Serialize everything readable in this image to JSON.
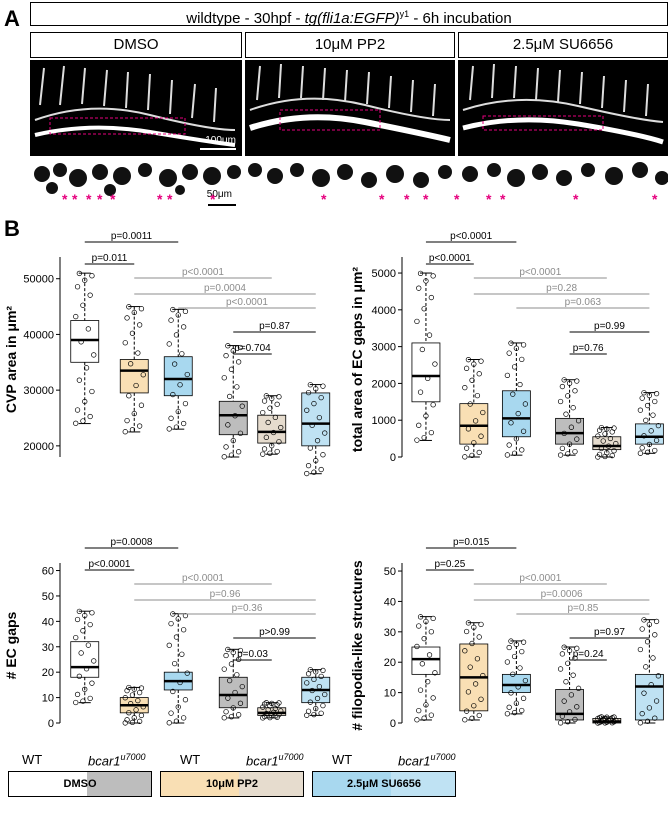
{
  "panel_a": {
    "letter": "A",
    "title_parts": [
      "wildtype - 30hpf - ",
      "tg(fli1a:EGFP)",
      "y1",
      " - 6h incubation"
    ],
    "conditions": [
      "DMSO",
      "10μM PP2",
      "2.5μM SU6656"
    ],
    "scale_top": "100μm",
    "scale_bottom": "50μm",
    "asterisk": "*",
    "asterisk_color": "#e6007e"
  },
  "panel_b": {
    "letter": "B"
  },
  "colors": {
    "dmso_wt": "#ffffff",
    "dmso_mut": "#bdbdbd",
    "pp2": "#f9dfb4",
    "pp2_mut": "#e6dcce",
    "su": "#a8d8ef",
    "su_mut": "#bfe2f3",
    "sig_black": "#000000",
    "sig_gray": "#8c8c8c"
  },
  "chart_data": [
    {
      "type": "box",
      "ylabel": "CVP area in μm²",
      "ylim": [
        18000,
        53000
      ],
      "yticks": [
        20000,
        30000,
        40000,
        50000
      ],
      "groups": [
        {
          "name": "WT DMSO",
          "q1": 35000,
          "median": 39000,
          "q3": 42500,
          "wlo": 24000,
          "whi": 51000
        },
        {
          "name": "bcar1 DMSO",
          "q1": 22000,
          "median": 25500,
          "q3": 28000,
          "wlo": 18000,
          "whi": 38000
        },
        {
          "name": "WT PP2",
          "q1": 29500,
          "median": 33500,
          "q3": 35500,
          "wlo": 22500,
          "whi": 45000
        },
        {
          "name": "bcar1 PP2",
          "q1": 20500,
          "median": 22500,
          "q3": 25500,
          "wlo": 18500,
          "whi": 29000
        },
        {
          "name": "WT SU6656",
          "q1": 29000,
          "median": 32000,
          "q3": 36000,
          "wlo": 23000,
          "whi": 44500
        },
        {
          "name": "bcar1 SU6656",
          "q1": 20000,
          "median": 24000,
          "q3": 29500,
          "wlo": 15000,
          "whi": 31000
        }
      ],
      "comparisons": [
        {
          "a": 0,
          "b": 4,
          "label": "p=0.0011",
          "color": "black"
        },
        {
          "a": 0,
          "b": 2,
          "label": "p=0.011",
          "color": "black"
        },
        {
          "a": 2,
          "b": 3,
          "label": "p<0.0001",
          "color": "gray"
        },
        {
          "a": 3,
          "b": 6,
          "label": "p=0.0004",
          "color": "gray"
        },
        {
          "a": 5,
          "b": 6,
          "label": "p<0.0001",
          "color": "gray"
        },
        {
          "a": 4,
          "b": 6,
          "label": "p=0.87",
          "color": "black"
        },
        {
          "a": 4,
          "b": 5,
          "label": "p=0.704",
          "color": "black"
        }
      ]
    },
    {
      "type": "box",
      "ylabel": "total area of EC gaps in μm²",
      "ylim": [
        0,
        5300
      ],
      "yticks": [
        0,
        1000,
        2000,
        3000,
        4000,
        5000
      ],
      "groups": [
        {
          "name": "WT DMSO",
          "q1": 1500,
          "median": 2200,
          "q3": 3100,
          "wlo": 450,
          "whi": 5000
        },
        {
          "name": "bcar1 DMSO",
          "q1": 350,
          "median": 650,
          "q3": 1050,
          "wlo": 50,
          "whi": 2100
        },
        {
          "name": "WT PP2",
          "q1": 350,
          "median": 850,
          "q3": 1450,
          "wlo": 0,
          "whi": 2650
        },
        {
          "name": "bcar1 PP2",
          "q1": 200,
          "median": 300,
          "q3": 550,
          "wlo": 0,
          "whi": 800
        },
        {
          "name": "WT SU6656",
          "q1": 550,
          "median": 1050,
          "q3": 1800,
          "wlo": 50,
          "whi": 3100
        },
        {
          "name": "bcar1 SU6656",
          "q1": 350,
          "median": 550,
          "q3": 900,
          "wlo": 100,
          "whi": 1750
        }
      ],
      "comparisons": [
        {
          "a": 0,
          "b": 4,
          "label": "p<0.0001",
          "color": "black"
        },
        {
          "a": 0,
          "b": 2,
          "label": "p<0.0001",
          "color": "black"
        },
        {
          "a": 2,
          "b": 3,
          "label": "p<0.0001",
          "color": "gray"
        },
        {
          "a": 3,
          "b": 6,
          "label": "p=0.28",
          "color": "gray"
        },
        {
          "a": 5,
          "b": 6,
          "label": "p=0.063",
          "color": "gray"
        },
        {
          "a": 4,
          "b": 6,
          "label": "p=0.99",
          "color": "black"
        },
        {
          "a": 4,
          "b": 5,
          "label": "p=0.76",
          "color": "black"
        }
      ]
    },
    {
      "type": "box",
      "ylabel": "# EC gaps",
      "ylim": [
        0,
        61
      ],
      "yticks": [
        0,
        10,
        20,
        30,
        40,
        50,
        60
      ],
      "groups": [
        {
          "name": "WT DMSO",
          "q1": 18,
          "median": 22,
          "q3": 32,
          "wlo": 8,
          "whi": 44
        },
        {
          "name": "bcar1 DMSO",
          "q1": 6,
          "median": 11,
          "q3": 18,
          "wlo": 2,
          "whi": 29
        },
        {
          "name": "WT PP2",
          "q1": 4,
          "median": 7,
          "q3": 10,
          "wlo": 0,
          "whi": 14
        },
        {
          "name": "bcar1 PP2",
          "q1": 3,
          "median": 4,
          "q3": 6,
          "wlo": 2,
          "whi": 8
        },
        {
          "name": "WT SU6656",
          "q1": 13,
          "median": 16.5,
          "q3": 20,
          "wlo": 0,
          "whi": 43
        },
        {
          "name": "bcar1 SU6656",
          "q1": 8,
          "median": 13,
          "q3": 18,
          "wlo": 3,
          "whi": 21
        }
      ],
      "comparisons": [
        {
          "a": 0,
          "b": 4,
          "label": "p=0.0008",
          "color": "black"
        },
        {
          "a": 0,
          "b": 2,
          "label": "p<0.0001",
          "color": "black"
        },
        {
          "a": 2,
          "b": 3,
          "label": "p<0.0001",
          "color": "gray"
        },
        {
          "a": 3,
          "b": 6,
          "label": "p=0.96",
          "color": "gray"
        },
        {
          "a": 5,
          "b": 6,
          "label": "p=0.36",
          "color": "gray"
        },
        {
          "a": 4,
          "b": 6,
          "label": "p>0.99",
          "color": "black"
        },
        {
          "a": 4,
          "b": 5,
          "label": "p=0.03",
          "color": "black"
        }
      ]
    },
    {
      "type": "box",
      "ylabel": "# filopodia-like structures",
      "ylim": [
        0,
        51
      ],
      "yticks": [
        0,
        10,
        20,
        30,
        40,
        50
      ],
      "groups": [
        {
          "name": "WT DMSO",
          "q1": 16,
          "median": 21,
          "q3": 25,
          "wlo": 1,
          "whi": 35
        },
        {
          "name": "bcar1 DMSO",
          "q1": 1,
          "median": 3,
          "q3": 11,
          "wlo": 0,
          "whi": 25
        },
        {
          "name": "WT PP2",
          "q1": 4,
          "median": 15,
          "q3": 26,
          "wlo": 1,
          "whi": 33
        },
        {
          "name": "bcar1 PP2",
          "q1": 0,
          "median": 0.5,
          "q3": 1.5,
          "wlo": 0,
          "whi": 2
        },
        {
          "name": "WT SU6656",
          "q1": 10,
          "median": 12.5,
          "q3": 16,
          "wlo": 3,
          "whi": 27
        },
        {
          "name": "bcar1 SU6656",
          "q1": 1,
          "median": 12,
          "q3": 16,
          "wlo": 0,
          "whi": 34
        }
      ],
      "comparisons": [
        {
          "a": 0,
          "b": 4,
          "label": "p=0.015",
          "color": "black"
        },
        {
          "a": 0,
          "b": 2,
          "label": "p=0.25",
          "color": "black"
        },
        {
          "a": 2,
          "b": 3,
          "label": "p<0.0001",
          "color": "gray"
        },
        {
          "a": 3,
          "b": 6,
          "label": "p=0.0006",
          "color": "gray"
        },
        {
          "a": 5,
          "b": 6,
          "label": "p=0.85",
          "color": "gray"
        },
        {
          "a": 4,
          "b": 6,
          "label": "p=0.97",
          "color": "black"
        },
        {
          "a": 4,
          "b": 5,
          "label": "p=0.24",
          "color": "black"
        }
      ]
    }
  ],
  "legend": {
    "items": [
      {
        "wt": "WT",
        "mut": "bcar1",
        "sup": "u7000",
        "label": "DMSO"
      },
      {
        "wt": "WT",
        "mut": "bcar1",
        "sup": "u7000",
        "label": "10μM PP2"
      },
      {
        "wt": "WT",
        "mut": "bcar1",
        "sup": "u7000",
        "label": "2.5μM SU6656"
      }
    ]
  }
}
